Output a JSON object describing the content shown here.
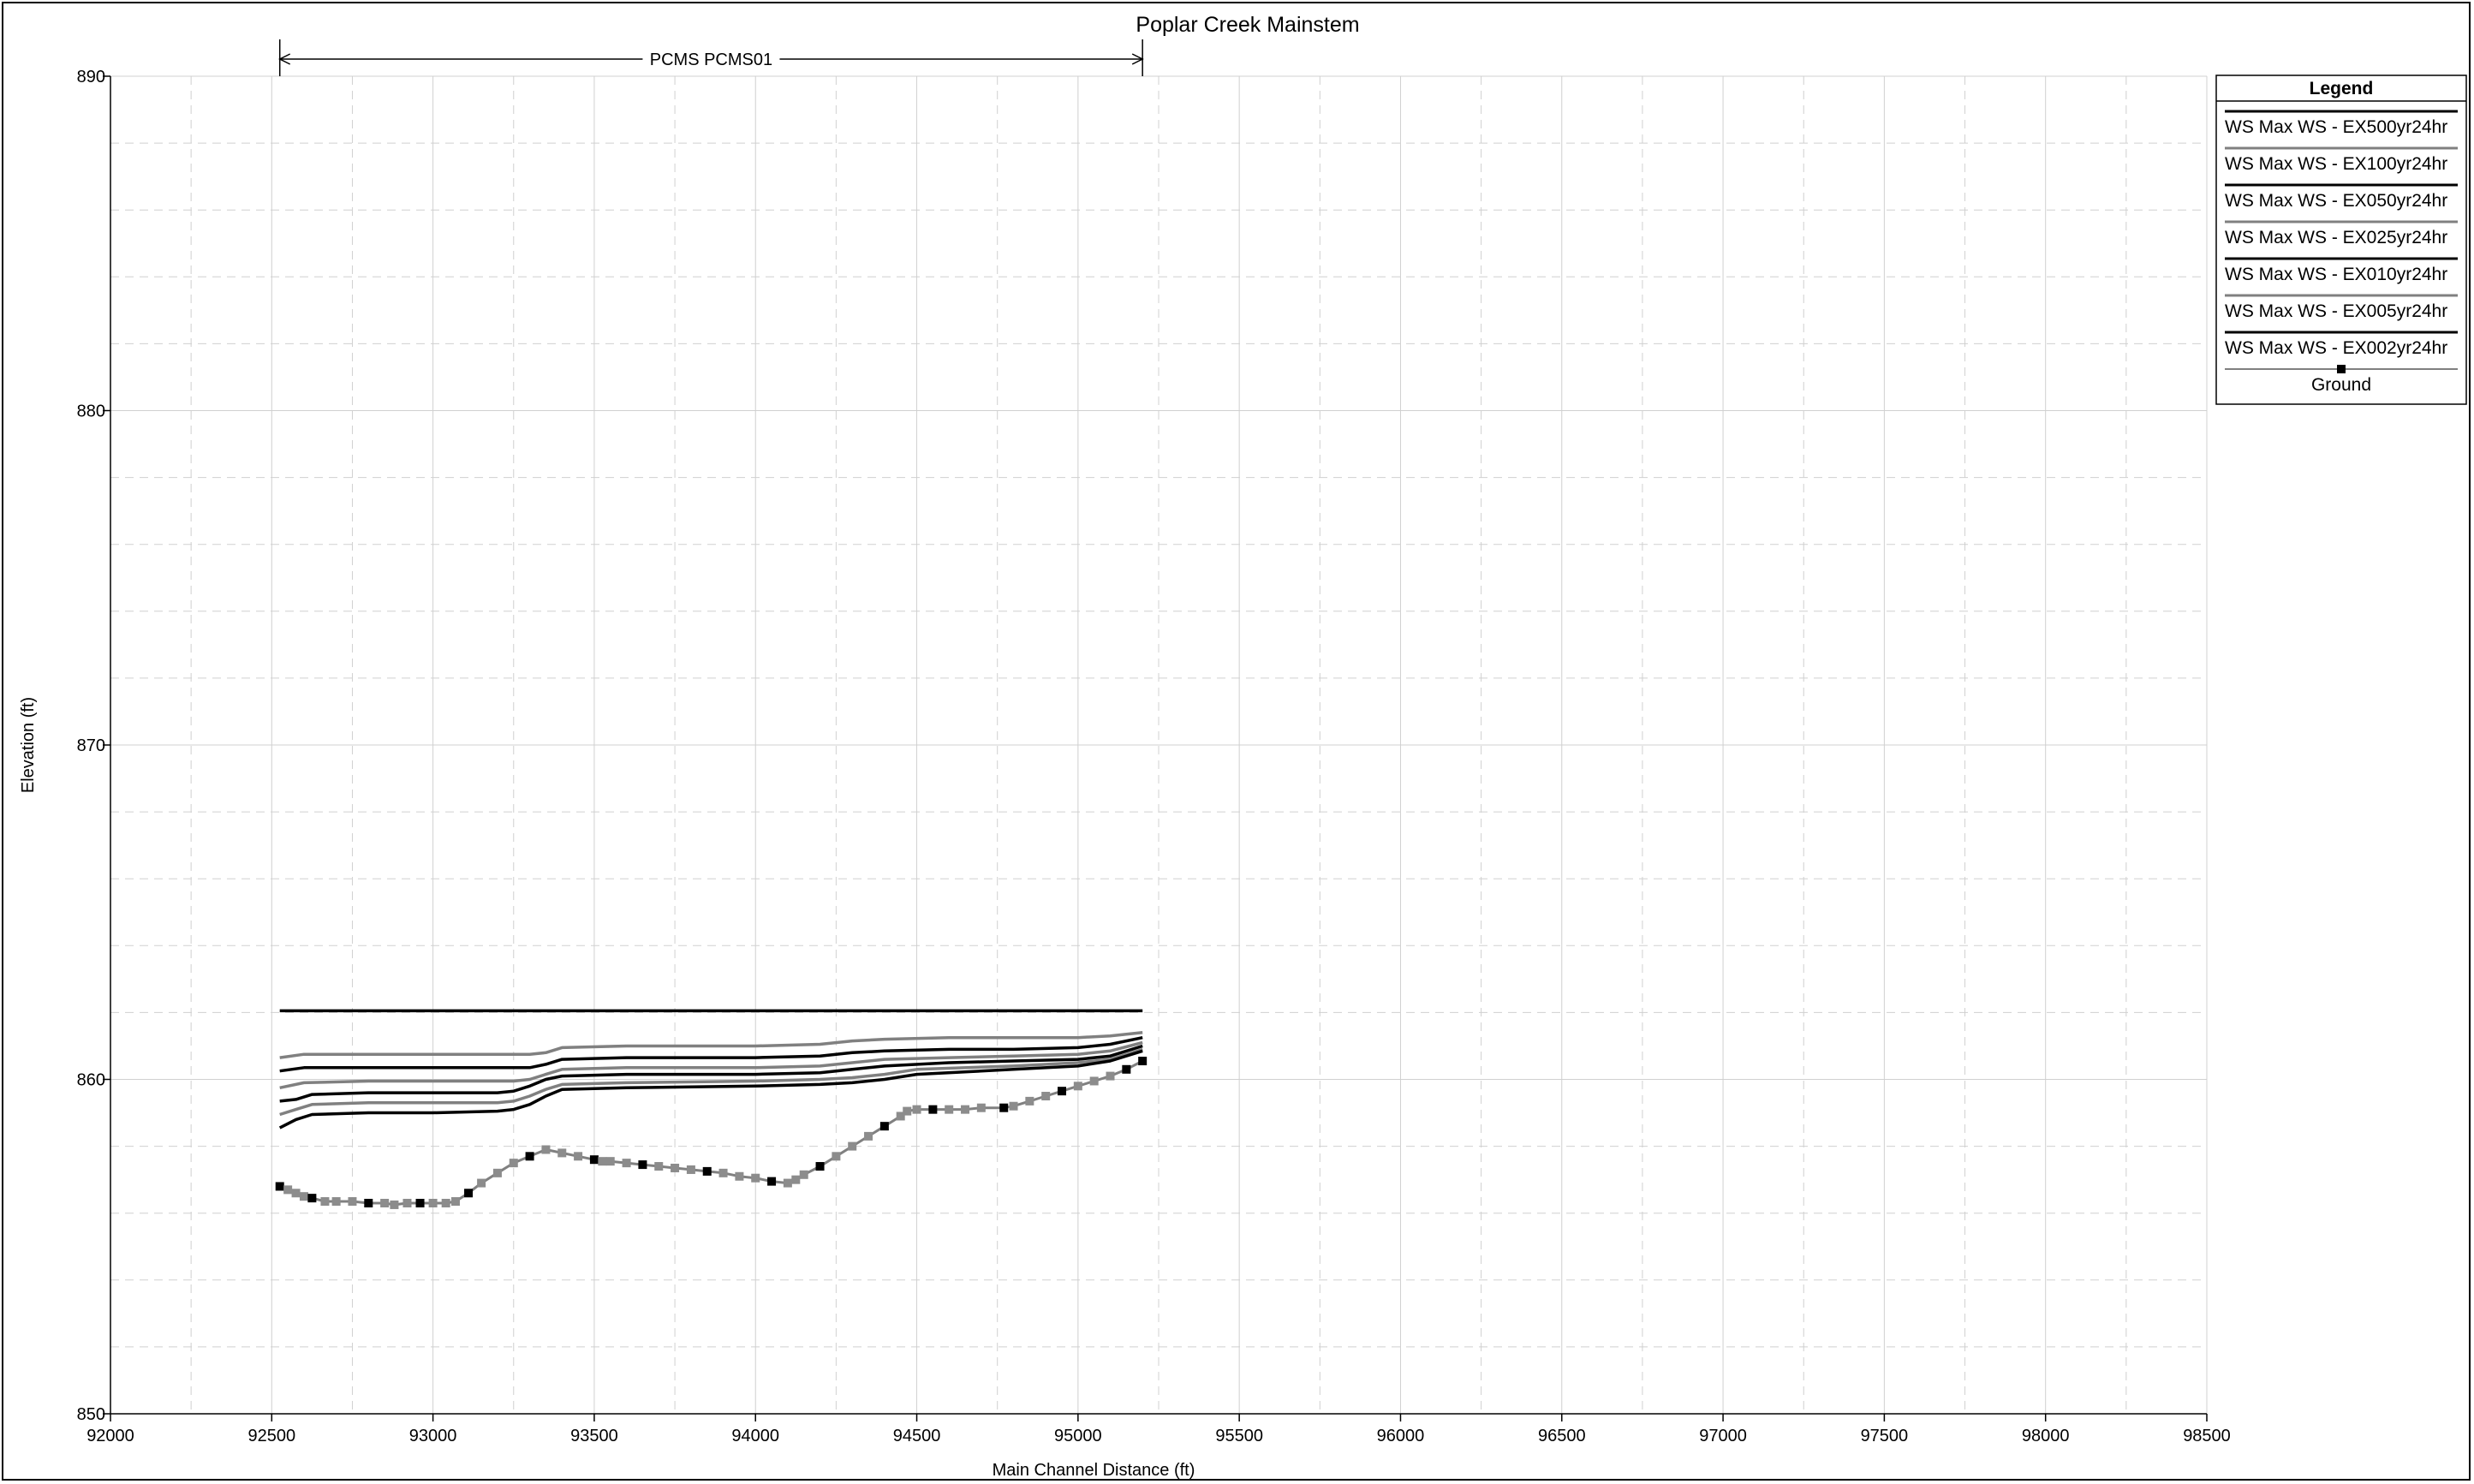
{
  "chart_data": {
    "type": "line",
    "title": "Poplar Creek Mainstem",
    "xlabel": "Main Channel Distance (ft)",
    "ylabel": "Elevation (ft)",
    "xlim": [
      92000,
      98500
    ],
    "ylim": [
      850,
      890
    ],
    "x_ticks": [
      92000,
      92500,
      93000,
      93500,
      94000,
      94500,
      95000,
      95500,
      96000,
      96500,
      97000,
      97500,
      98000,
      98500
    ],
    "y_ticks": [
      850,
      860,
      870,
      880,
      890
    ],
    "grid": true,
    "legend_position": "top-right",
    "reach_annotation": {
      "label": "PCMS PCMS01",
      "x_start": 92525,
      "x_end": 95200
    },
    "legend": {
      "title": "Legend",
      "entries": [
        "WS  Max WS - EX500yr24hr",
        "WS  Max WS - EX100yr24hr",
        "WS  Max WS - EX050yr24hr",
        "WS  Max WS - EX025yr24hr",
        "WS  Max WS - EX010yr24hr",
        "WS  Max WS - EX005yr24hr",
        "WS  Max WS - EX002yr24hr",
        "Ground"
      ]
    },
    "series": [
      {
        "name": "WS  Max WS - EX500yr24hr",
        "color": "#000000",
        "x": [
          92525,
          93000,
          93500,
          94000,
          94500,
          95000,
          95200
        ],
        "y": [
          862.05,
          862.05,
          862.05,
          862.05,
          862.05,
          862.05,
          862.05
        ]
      },
      {
        "name": "WS  Max WS - EX100yr24hr",
        "color": "#808080",
        "x": [
          92525,
          92600,
          92800,
          93000,
          93300,
          93350,
          93400,
          93600,
          94000,
          94200,
          94300,
          94400,
          94600,
          94800,
          95000,
          95100,
          95200
        ],
        "y": [
          860.65,
          860.75,
          860.75,
          860.75,
          860.75,
          860.8,
          860.95,
          861.0,
          861.0,
          861.05,
          861.15,
          861.2,
          861.25,
          861.25,
          861.25,
          861.3,
          861.4
        ]
      },
      {
        "name": "WS  Max WS - EX050yr24hr",
        "color": "#000000",
        "x": [
          92525,
          92600,
          92800,
          93000,
          93300,
          93350,
          93400,
          93600,
          94000,
          94200,
          94300,
          94400,
          94600,
          94800,
          95000,
          95100,
          95200
        ],
        "y": [
          860.25,
          860.35,
          860.35,
          860.35,
          860.35,
          860.45,
          860.6,
          860.65,
          860.65,
          860.7,
          860.8,
          860.85,
          860.9,
          860.9,
          860.95,
          861.05,
          861.25
        ]
      },
      {
        "name": "WS  Max WS - EX025yr24hr",
        "color": "#808080",
        "x": [
          92525,
          92600,
          92800,
          93000,
          93250,
          93300,
          93350,
          93400,
          93600,
          94000,
          94200,
          94300,
          94400,
          94600,
          94800,
          95000,
          95100,
          95200
        ],
        "y": [
          859.75,
          859.9,
          859.95,
          859.95,
          859.95,
          860.0,
          860.15,
          860.3,
          860.35,
          860.35,
          860.4,
          860.5,
          860.6,
          860.65,
          860.7,
          860.75,
          860.85,
          861.1
        ]
      },
      {
        "name": "WS  Max WS - EX010yr24hr",
        "color": "#000000",
        "x": [
          92525,
          92575,
          92625,
          92800,
          93000,
          93200,
          93250,
          93300,
          93350,
          93400,
          93600,
          94000,
          94200,
          94300,
          94400,
          94600,
          94800,
          95000,
          95100,
          95200
        ],
        "y": [
          859.35,
          859.4,
          859.55,
          859.6,
          859.6,
          859.6,
          859.65,
          859.8,
          860.0,
          860.1,
          860.15,
          860.15,
          860.2,
          860.3,
          860.4,
          860.5,
          860.55,
          860.6,
          860.7,
          861.0
        ]
      },
      {
        "name": "WS  Max WS - EX005yr24hr",
        "color": "#808080",
        "x": [
          92525,
          92575,
          92625,
          92800,
          93000,
          93200,
          93250,
          93300,
          93350,
          93400,
          93600,
          94000,
          94200,
          94300,
          94400,
          94500,
          94800,
          95000,
          95100,
          95200
        ],
        "y": [
          858.95,
          859.1,
          859.25,
          859.3,
          859.3,
          859.3,
          859.35,
          859.5,
          859.7,
          859.85,
          859.9,
          859.95,
          860.0,
          860.05,
          860.15,
          860.3,
          860.4,
          860.5,
          860.6,
          860.9
        ]
      },
      {
        "name": "WS  Max WS - EX002yr24hr",
        "color": "#000000",
        "x": [
          92525,
          92575,
          92625,
          92800,
          93000,
          93200,
          93250,
          93300,
          93350,
          93400,
          93600,
          94000,
          94200,
          94300,
          94400,
          94500,
          94800,
          95000,
          95100,
          95200
        ],
        "y": [
          858.55,
          858.8,
          858.95,
          859.0,
          859.0,
          859.05,
          859.1,
          859.25,
          859.5,
          859.7,
          859.75,
          859.8,
          859.85,
          859.9,
          860.0,
          860.15,
          860.3,
          860.4,
          860.55,
          860.85
        ]
      },
      {
        "name": "Ground",
        "color": "#808080",
        "marker": "square",
        "x": [
          92525,
          92550,
          92575,
          92600,
          92625,
          92665,
          92700,
          92750,
          92800,
          92850,
          92880,
          92920,
          92960,
          93000,
          93040,
          93070,
          93110,
          93150,
          93200,
          93250,
          93300,
          93350,
          93400,
          93450,
          93500,
          93525,
          93550,
          93600,
          93650,
          93700,
          93750,
          93800,
          93850,
          93900,
          93950,
          94000,
          94050,
          94100,
          94125,
          94150,
          94200,
          94250,
          94300,
          94350,
          94400,
          94450,
          94470,
          94500,
          94550,
          94600,
          94650,
          94700,
          94770,
          94800,
          94850,
          94900,
          94950,
          95000,
          95050,
          95100,
          95150,
          95200
        ],
        "y": [
          856.8,
          856.7,
          856.6,
          856.5,
          856.45,
          856.35,
          856.35,
          856.35,
          856.3,
          856.3,
          856.25,
          856.3,
          856.3,
          856.3,
          856.3,
          856.35,
          856.6,
          856.9,
          857.2,
          857.5,
          857.7,
          857.9,
          857.8,
          857.7,
          857.6,
          857.55,
          857.55,
          857.5,
          857.45,
          857.4,
          857.35,
          857.3,
          857.25,
          857.2,
          857.1,
          857.05,
          856.95,
          856.9,
          857.0,
          857.15,
          857.4,
          857.7,
          858.0,
          858.3,
          858.6,
          858.9,
          859.05,
          859.1,
          859.1,
          859.1,
          859.1,
          859.15,
          859.15,
          859.2,
          859.35,
          859.5,
          859.65,
          859.8,
          859.95,
          860.1,
          860.3,
          860.55
        ]
      }
    ]
  }
}
